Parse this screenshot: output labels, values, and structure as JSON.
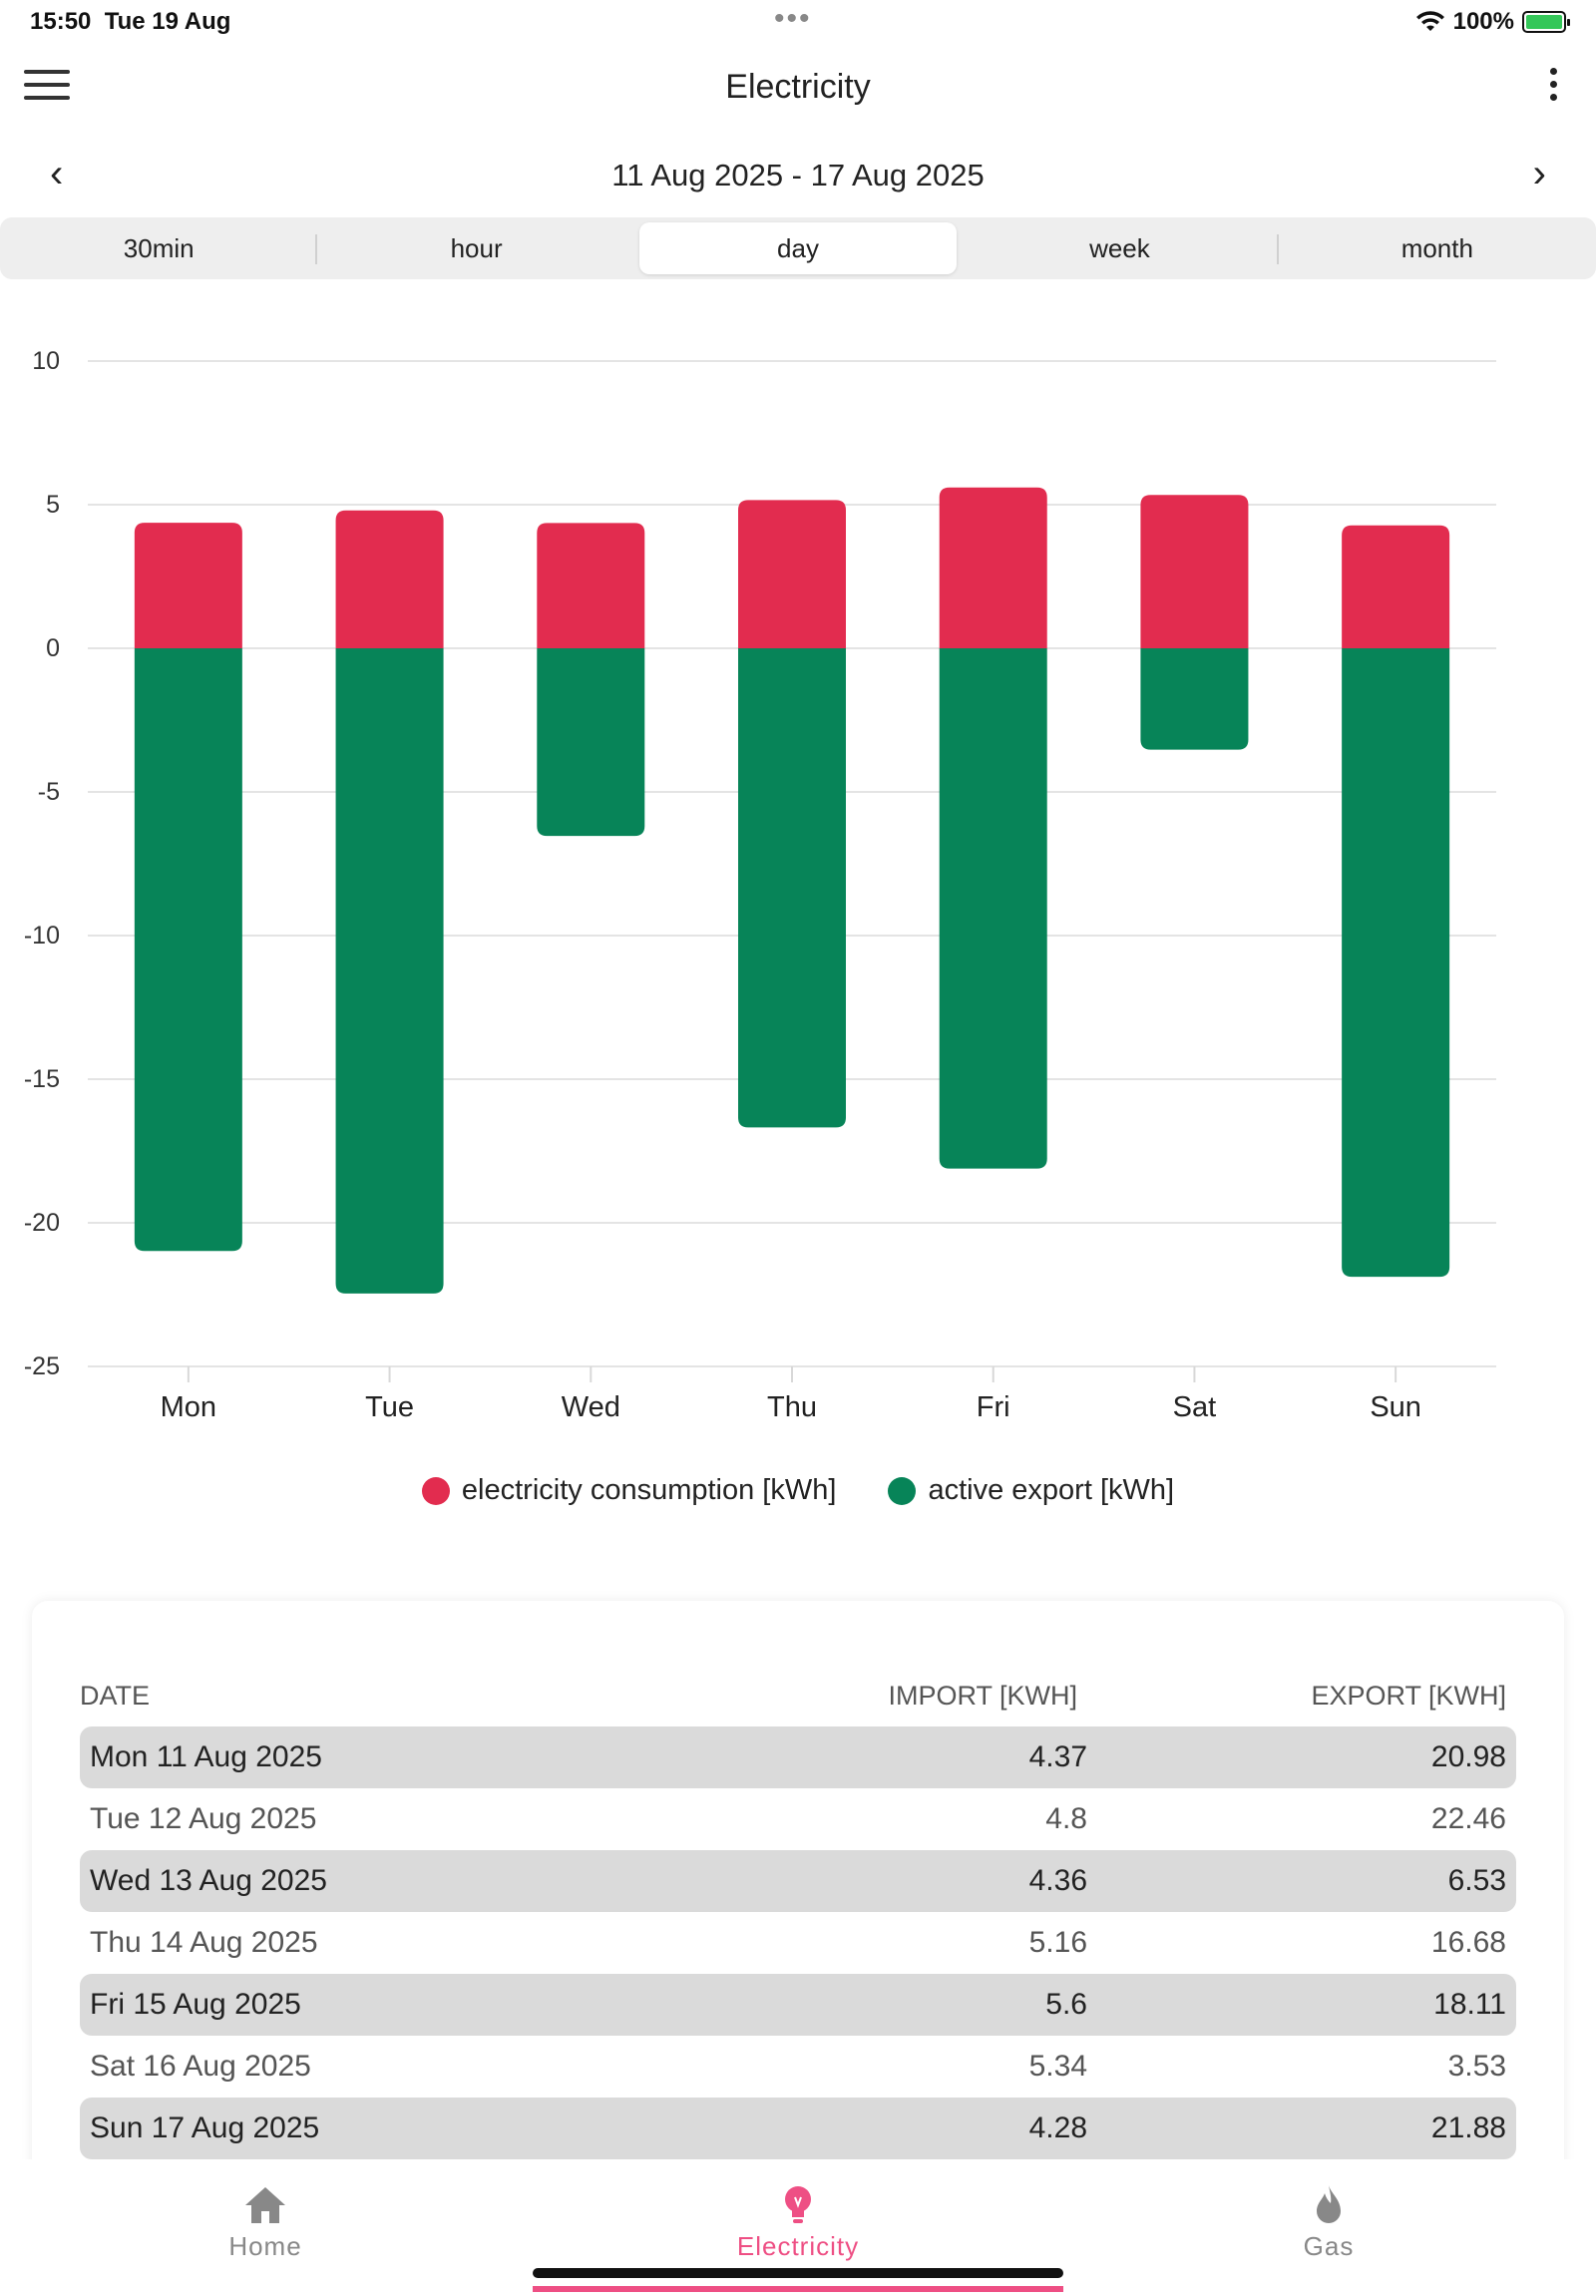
{
  "status_bar": {
    "time": "15:50",
    "date": "Tue 19 Aug",
    "battery": "100%"
  },
  "header": {
    "title": "Electricity"
  },
  "date_nav": {
    "range": "11 Aug 2025 - 17 Aug 2025"
  },
  "segments": [
    "30min",
    "hour",
    "day",
    "week",
    "month"
  ],
  "segment_selected": "day",
  "colors": {
    "consumption": "#e22c4f",
    "export": "#078458",
    "accent": "#ee4f84"
  },
  "chart_data": {
    "type": "bar",
    "categories": [
      "Mon",
      "Tue",
      "Wed",
      "Thu",
      "Fri",
      "Sat",
      "Sun"
    ],
    "series": [
      {
        "name": "electricity consumption [kWh]",
        "values": [
          4.37,
          4.8,
          4.36,
          5.16,
          5.6,
          5.34,
          4.28
        ]
      },
      {
        "name": "active export [kWh]",
        "values": [
          -20.98,
          -22.46,
          -6.53,
          -16.68,
          -18.11,
          -3.53,
          -21.88
        ]
      }
    ],
    "ylim": [
      -25,
      10
    ],
    "yticks": [
      "10",
      "5",
      "0",
      "-5",
      "-10",
      "-15",
      "-20",
      "-25"
    ],
    "stacked": true,
    "grid": true,
    "legend": "bottom"
  },
  "legend": {
    "consumption": "electricity consumption [kWh]",
    "export": "active export [kWh]"
  },
  "table": {
    "headers": {
      "date": "DATE",
      "import": "IMPORT [KWH]",
      "export": "EXPORT [KWH]"
    },
    "rows": [
      {
        "date": "Mon 11 Aug 2025",
        "import": "4.37",
        "export": "20.98"
      },
      {
        "date": "Tue 12 Aug 2025",
        "import": "4.8",
        "export": "22.46"
      },
      {
        "date": "Wed 13 Aug 2025",
        "import": "4.36",
        "export": "6.53"
      },
      {
        "date": "Thu 14 Aug 2025",
        "import": "5.16",
        "export": "16.68"
      },
      {
        "date": "Fri 15 Aug 2025",
        "import": "5.6",
        "export": "18.11"
      },
      {
        "date": "Sat 16 Aug 2025",
        "import": "5.34",
        "export": "3.53"
      },
      {
        "date": "Sun 17 Aug 2025",
        "import": "4.28",
        "export": "21.88"
      }
    ]
  },
  "tabbar": {
    "home": "Home",
    "electricity": "Electricity",
    "gas": "Gas"
  },
  "icons": {
    "menu": "hamburger-menu-icon",
    "more": "more-vertical-icon",
    "prev": "chevron-left-icon",
    "next": "chevron-right-icon",
    "home": "home-icon",
    "electricity": "lightbulb-icon",
    "gas": "flame-icon",
    "wifi": "wifi-icon",
    "battery": "battery-icon"
  }
}
